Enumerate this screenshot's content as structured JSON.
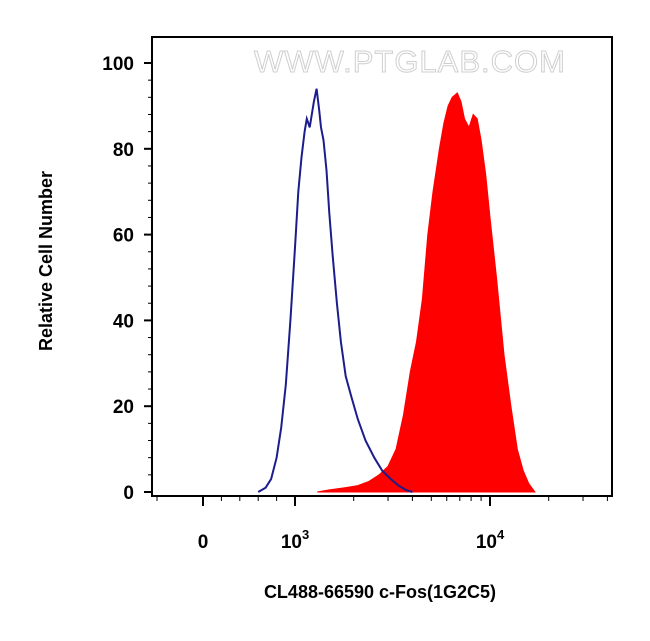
{
  "chart_data": {
    "type": "area",
    "title": "",
    "xlabel": "CL488-66590 c-Fos(1G2C5)",
    "ylabel": "Relative Cell Number",
    "xscale": "biexponential",
    "x_tick_labels": [
      {
        "value": 0,
        "base": "0",
        "exp": ""
      },
      {
        "value": 1000,
        "base": "10",
        "exp": "3"
      },
      {
        "value": 10000,
        "base": "10",
        "exp": "4"
      }
    ],
    "ylim": [
      0,
      100
    ],
    "y_ticks": [
      0,
      20,
      40,
      60,
      80,
      100
    ],
    "grid": false,
    "watermark": "WWW.PTGLAB.COM",
    "series": [
      {
        "color": "#1c1c8c",
        "style": "outline",
        "points": [
          [
            600,
            0
          ],
          [
            680,
            1
          ],
          [
            740,
            3
          ],
          [
            800,
            8
          ],
          [
            850,
            15
          ],
          [
            900,
            25
          ],
          [
            950,
            40
          ],
          [
            1000,
            57
          ],
          [
            1040,
            70
          ],
          [
            1080,
            78
          ],
          [
            1120,
            84
          ],
          [
            1150,
            87
          ],
          [
            1170,
            86
          ],
          [
            1190,
            85
          ],
          [
            1220,
            88
          ],
          [
            1250,
            91
          ],
          [
            1290,
            94
          ],
          [
            1330,
            89
          ],
          [
            1360,
            85
          ],
          [
            1400,
            82
          ],
          [
            1450,
            75
          ],
          [
            1500,
            65
          ],
          [
            1560,
            55
          ],
          [
            1640,
            44
          ],
          [
            1720,
            35
          ],
          [
            1820,
            27
          ],
          [
            1950,
            22
          ],
          [
            2100,
            17
          ],
          [
            2300,
            12
          ],
          [
            2550,
            8
          ],
          [
            2800,
            5
          ],
          [
            3100,
            3
          ],
          [
            3400,
            1.5
          ],
          [
            3700,
            0.5
          ],
          [
            4000,
            0
          ]
        ]
      },
      {
        "color": "#ff0000",
        "style": "filled",
        "points": [
          [
            1300,
            0
          ],
          [
            1500,
            0.5
          ],
          [
            1800,
            1
          ],
          [
            2100,
            1.5
          ],
          [
            2400,
            2.5
          ],
          [
            2700,
            4
          ],
          [
            3000,
            6
          ],
          [
            3300,
            10
          ],
          [
            3600,
            18
          ],
          [
            3900,
            28
          ],
          [
            4200,
            35
          ],
          [
            4500,
            45
          ],
          [
            4800,
            60
          ],
          [
            5100,
            70
          ],
          [
            5300,
            75
          ],
          [
            5500,
            80
          ],
          [
            5800,
            86
          ],
          [
            6100,
            90
          ],
          [
            6400,
            92
          ],
          [
            6800,
            93
          ],
          [
            7100,
            91
          ],
          [
            7400,
            87
          ],
          [
            7800,
            85
          ],
          [
            8200,
            88
          ],
          [
            8600,
            87
          ],
          [
            9000,
            82
          ],
          [
            9500,
            74
          ],
          [
            10000,
            64
          ],
          [
            10800,
            50
          ],
          [
            11800,
            32
          ],
          [
            12800,
            20
          ],
          [
            13800,
            10
          ],
          [
            14800,
            5
          ],
          [
            15800,
            2
          ],
          [
            17000,
            0
          ]
        ]
      }
    ]
  }
}
